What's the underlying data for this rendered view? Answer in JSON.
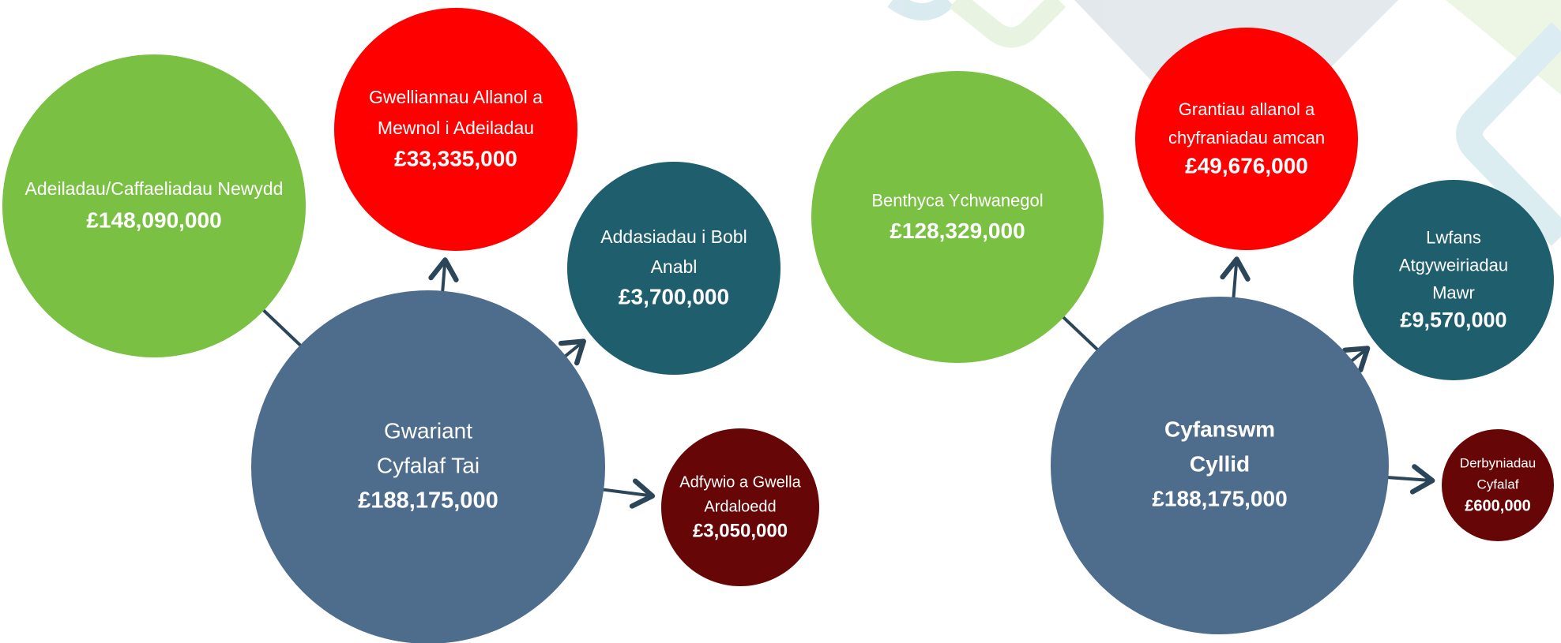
{
  "diagrams": [
    {
      "center": {
        "lines": [
          "Gwariant",
          "Cyfalaf Tai"
        ],
        "amount": "£188,175,000"
      },
      "satellites": [
        {
          "lines": [
            "Adeiladau/Caffaeliadau Newydd"
          ],
          "amount": "£148,090,000"
        },
        {
          "lines": [
            "Gwelliannau Allanol a",
            "Mewnol i Adeiladau"
          ],
          "amount": "£33,335,000"
        },
        {
          "lines": [
            "Addasiadau i Bobl",
            "Anabl"
          ],
          "amount": "£3,700,000"
        },
        {
          "lines": [
            "Adfywio a Gwella",
            "Ardaloedd"
          ],
          "amount": "£3,050,000"
        }
      ]
    },
    {
      "center": {
        "lines": [
          "Cyfanswm",
          "Cyllid"
        ],
        "amount": "£188,175,000"
      },
      "satellites": [
        {
          "lines": [
            "Benthyca Ychwanegol"
          ],
          "amount": "£128,329,000"
        },
        {
          "lines": [
            "Grantiau allanol a",
            "chyfraniadau amcan"
          ],
          "amount": "£49,676,000"
        },
        {
          "lines": [
            "Lwfans",
            "Atgyweiriadau",
            "Mawr"
          ],
          "amount": "£9,570,000"
        },
        {
          "lines": [
            "Derbyniadau",
            "Cyfalaf"
          ],
          "amount": "£600,000"
        }
      ]
    }
  ]
}
